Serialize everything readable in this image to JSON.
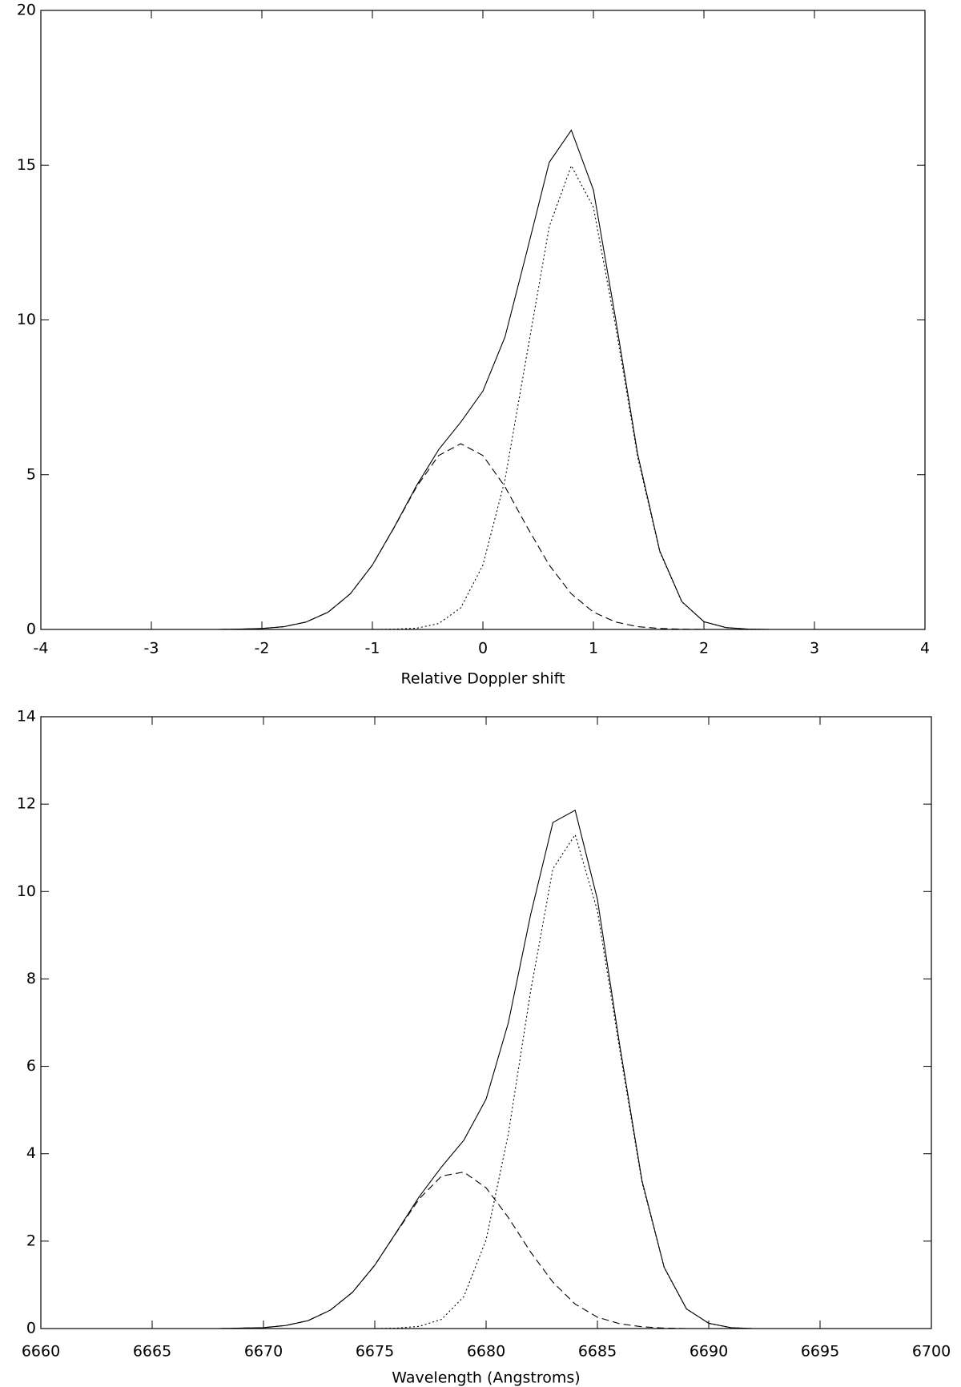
{
  "chart_data": [
    {
      "type": "line",
      "xlabel": "Relative Doppler shift",
      "x": [
        -4,
        -3.8,
        -3.6,
        -3.4,
        -3.2,
        -3,
        -2.8,
        -2.6,
        -2.4,
        -2.2,
        -2,
        -1.8,
        -1.6,
        -1.4,
        -1.2,
        -1,
        -0.8,
        -0.6,
        -0.4,
        -0.2,
        0,
        0.2,
        0.4,
        0.6,
        0.8,
        1,
        1.2,
        1.4,
        1.6,
        1.8,
        2,
        2.2,
        2.4,
        2.6,
        2.8,
        3,
        3.2,
        3.4,
        3.6,
        3.8,
        4
      ],
      "series": [
        {
          "color": "#000000",
          "dash": "solid",
          "values": [
            0,
            0,
            0,
            0,
            0,
            0,
            0,
            0,
            0,
            0.01,
            0.03,
            0.09,
            0.24,
            0.56,
            1.15,
            2.08,
            3.32,
            4.65,
            5.81,
            6.7,
            7.7,
            9.45,
            12.24,
            15.09,
            16.13,
            14.2,
            10.05,
            5.67,
            2.54,
            0.9,
            0.25,
            0.06,
            0.01,
            0,
            0,
            0,
            0,
            0,
            0,
            0,
            0
          ]
        },
        {
          "color": "#000000",
          "dash": "dashed",
          "values": [
            0,
            0,
            0,
            0,
            0,
            0,
            0,
            0,
            0,
            0.01,
            0.03,
            0.09,
            0.24,
            0.56,
            1.15,
            2.08,
            3.31,
            4.61,
            5.62,
            6,
            5.62,
            4.61,
            3.31,
            2.08,
            1.15,
            0.56,
            0.24,
            0.09,
            0.03,
            0.01,
            0,
            0,
            0,
            0,
            0,
            0,
            0,
            0,
            0,
            0,
            0
          ]
        },
        {
          "color": "#000000",
          "dash": "dotted",
          "values": [
            0,
            0,
            0,
            0,
            0,
            0,
            0,
            0,
            0,
            0,
            0,
            0,
            0,
            0,
            0,
            0,
            0.01,
            0.04,
            0.19,
            0.7,
            2.08,
            4.84,
            8.93,
            13.01,
            14.98,
            13.64,
            9.81,
            5.58,
            2.51,
            0.89,
            0.25,
            0.06,
            0.01,
            0,
            0,
            0,
            0,
            0,
            0,
            0,
            0
          ]
        }
      ],
      "xlim": [
        -4,
        4
      ],
      "xticks": [
        -4,
        -3,
        -2,
        -1,
        0,
        1,
        2,
        3,
        4
      ],
      "ylim": [
        0,
        20
      ],
      "yticks": [
        0,
        5,
        10,
        15,
        20
      ]
    },
    {
      "type": "line",
      "xlabel": "Wavelength (Angstroms)",
      "x": [
        6660,
        6661,
        6662,
        6663,
        6664,
        6665,
        6666,
        6667,
        6668,
        6669,
        6670,
        6671,
        6672,
        6673,
        6674,
        6675,
        6676,
        6677,
        6678,
        6679,
        6680,
        6681,
        6682,
        6683,
        6684,
        6685,
        6686,
        6687,
        6688,
        6689,
        6690,
        6691,
        6692,
        6693,
        6694,
        6695,
        6696,
        6697,
        6698,
        6699,
        6700
      ],
      "series": [
        {
          "color": "#000000",
          "dash": "solid",
          "values": [
            0,
            0,
            0,
            0,
            0,
            0,
            0,
            0,
            0,
            0.01,
            0.02,
            0.07,
            0.18,
            0.42,
            0.83,
            1.45,
            2.23,
            3.02,
            3.7,
            4.31,
            5.25,
            7.0,
            9.47,
            11.58,
            11.86,
            9.82,
            6.49,
            3.39,
            1.4,
            0.45,
            0.12,
            0.02,
            0,
            0,
            0,
            0,
            0,
            0,
            0,
            0,
            0
          ]
        },
        {
          "color": "#000000",
          "dash": "dashed",
          "values": [
            0,
            0,
            0,
            0,
            0,
            0,
            0,
            0,
            0,
            0.01,
            0.02,
            0.07,
            0.18,
            0.42,
            0.83,
            1.45,
            2.22,
            2.97,
            3.49,
            3.58,
            3.22,
            2.54,
            1.75,
            1.06,
            0.56,
            0.26,
            0.11,
            0.04,
            0.01,
            0,
            0,
            0,
            0,
            0,
            0,
            0,
            0,
            0,
            0,
            0,
            0
          ]
        },
        {
          "color": "#000000",
          "dash": "dotted",
          "values": [
            0,
            0,
            0,
            0,
            0,
            0,
            0,
            0,
            0,
            0,
            0,
            0,
            0,
            0,
            0,
            0,
            0.01,
            0.05,
            0.21,
            0.73,
            2.03,
            4.46,
            7.72,
            10.52,
            11.3,
            9.56,
            6.38,
            3.35,
            1.39,
            0.45,
            0.12,
            0.02,
            0,
            0,
            0,
            0,
            0,
            0,
            0,
            0,
            0
          ]
        }
      ],
      "xlim": [
        6660,
        6700
      ],
      "xticks": [
        6660,
        6665,
        6670,
        6675,
        6680,
        6685,
        6690,
        6695,
        6700
      ],
      "ylim": [
        0,
        14
      ],
      "yticks": [
        0,
        2,
        4,
        6,
        8,
        10,
        12,
        14
      ]
    }
  ]
}
